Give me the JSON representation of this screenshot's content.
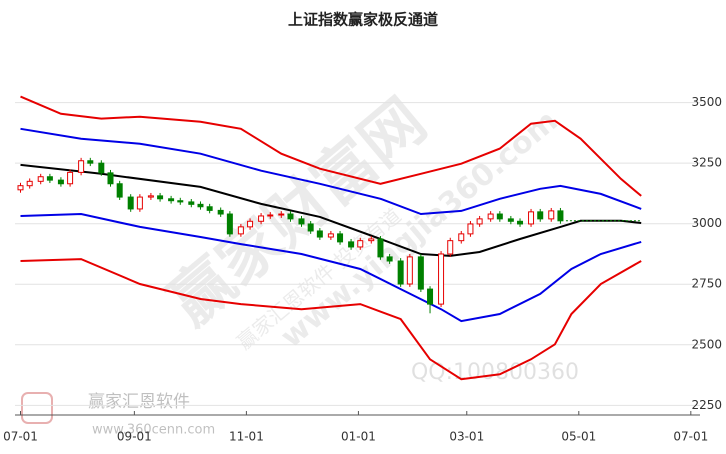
{
  "chart_data": {
    "type": "candlestick",
    "title": "上证指数赢家极反通道",
    "xlim": [
      -3,
      370
    ],
    "ylim": [
      2210,
      3800
    ],
    "xticks": [
      {
        "value": 0,
        "label": "07-01"
      },
      {
        "value": 62,
        "label": "09-01"
      },
      {
        "value": 123,
        "label": "11-01"
      },
      {
        "value": 184,
        "label": "01-01"
      },
      {
        "value": 243,
        "label": "03-01"
      },
      {
        "value": 304,
        "label": "05-01"
      },
      {
        "value": 365,
        "label": "07-01"
      }
    ],
    "yticks": [
      2250,
      2500,
      2750,
      3000,
      3250,
      3500
    ],
    "grid": true,
    "up_color": "#e60000",
    "down_color": "#008000",
    "candles": {
      "x": [
        0,
        5,
        11,
        16,
        22,
        27,
        33,
        38,
        44,
        49,
        54,
        60,
        65,
        71,
        76,
        82,
        87,
        93,
        98,
        103,
        109,
        114,
        120,
        125,
        131,
        136,
        142,
        147,
        153,
        158,
        163,
        169,
        174,
        180,
        185,
        191,
        196,
        201,
        207,
        212,
        218,
        223,
        229,
        234,
        240,
        245,
        250,
        256,
        261,
        267,
        272,
        278,
        283,
        289,
        294
      ],
      "open": [
        3140,
        3157,
        3175,
        3194,
        3180,
        3165,
        3212,
        3260,
        3250,
        3210,
        3165,
        3110,
        3061,
        3110,
        3115,
        3103,
        3095,
        3090,
        3080,
        3070,
        3055,
        3040,
        2958,
        2987,
        3010,
        3032,
        3036,
        3040,
        3020,
        2999,
        2970,
        2945,
        2958,
        2925,
        2904,
        2930,
        2937,
        2863,
        2846,
        2751,
        2863,
        2730,
        2668,
        2875,
        2930,
        2958,
        2999,
        3020,
        3040,
        3020,
        3010,
        2999,
        3049,
        3020,
        3053
      ],
      "close": [
        3157,
        3175,
        3194,
        3180,
        3165,
        3212,
        3260,
        3250,
        3210,
        3165,
        3110,
        3061,
        3110,
        3115,
        3103,
        3095,
        3090,
        3080,
        3070,
        3055,
        3040,
        2958,
        2987,
        3010,
        3032,
        3036,
        3040,
        3020,
        2999,
        2970,
        2945,
        2958,
        2925,
        2904,
        2930,
        2937,
        2863,
        2846,
        2751,
        2863,
        2730,
        2668,
        2875,
        2930,
        2958,
        2999,
        3020,
        3040,
        3020,
        3010,
        2999,
        3049,
        3020,
        3053,
        3012
      ],
      "high": [
        3169,
        3187,
        3206,
        3206,
        3192,
        3224,
        3272,
        3272,
        3262,
        3222,
        3177,
        3122,
        3122,
        3127,
        3127,
        3115,
        3107,
        3102,
        3092,
        3082,
        3067,
        3052,
        2999,
        3022,
        3044,
        3048,
        3052,
        3052,
        3032,
        3011,
        2982,
        2970,
        2970,
        2937,
        2942,
        2949,
        2949,
        2875,
        2858,
        2875,
        2875,
        2742,
        2887,
        2942,
        2970,
        3011,
        3032,
        3052,
        3052,
        3032,
        3022,
        3061,
        3061,
        3065,
        3065
      ],
      "low": [
        3128,
        3145,
        3163,
        3168,
        3153,
        3153,
        3200,
        3238,
        3198,
        3153,
        3098,
        3049,
        3049,
        3098,
        3091,
        3083,
        3078,
        3068,
        3058,
        3043,
        3028,
        2946,
        2946,
        2975,
        2998,
        3020,
        3024,
        3008,
        2987,
        2958,
        2933,
        2933,
        2913,
        2892,
        2892,
        2918,
        2851,
        2834,
        2739,
        2739,
        2718,
        2630,
        2656,
        2863,
        2918,
        2946,
        2987,
        3008,
        3008,
        2998,
        2987,
        2987,
        3008,
        3008,
        3000
      ]
    },
    "lines": [
      {
        "color": "#e60000",
        "x": [
          0,
          22,
          44,
          65,
          98,
          120,
          142,
          163,
          196,
          218,
          240,
          261,
          278,
          291,
          305,
          327,
          338
        ],
        "values": [
          3525,
          3454,
          3434,
          3442,
          3421,
          3392,
          3289,
          3227,
          3165,
          3206,
          3248,
          3310,
          3413,
          3425,
          3351,
          3185,
          3115
        ]
      },
      {
        "color": "#0000e6",
        "x": [
          0,
          33,
          65,
          98,
          131,
          163,
          196,
          218,
          240,
          261,
          283,
          294,
          316,
          338
        ],
        "values": [
          3392,
          3351,
          3330,
          3289,
          3219,
          3165,
          3103,
          3040,
          3053,
          3103,
          3144,
          3156,
          3123,
          3061
        ]
      },
      {
        "color": "#000000",
        "x": [
          0,
          44,
          98,
          131,
          163,
          196,
          218,
          234,
          250,
          272,
          294,
          305,
          327,
          338
        ],
        "values": [
          3243,
          3206,
          3152,
          3082,
          3028,
          2937,
          2875,
          2867,
          2883,
          2937,
          2987,
          3012,
          3012,
          3003
        ]
      },
      {
        "color": "#0000e6",
        "x": [
          0,
          33,
          65,
          98,
          120,
          153,
          185,
          207,
          229,
          240,
          261,
          283,
          300,
          316,
          338
        ],
        "values": [
          3032,
          3040,
          2987,
          2945,
          2916,
          2875,
          2813,
          2730,
          2647,
          2598,
          2627,
          2710,
          2813,
          2875,
          2925
        ]
      },
      {
        "color": "#e60000",
        "x": [
          0,
          33,
          65,
          98,
          120,
          153,
          185,
          207,
          223,
          240,
          261,
          278,
          291,
          300,
          316,
          338
        ],
        "values": [
          2846,
          2854,
          2751,
          2689,
          2668,
          2647,
          2668,
          2606,
          2440,
          2358,
          2378,
          2440,
          2502,
          2627,
          2751,
          2846
        ]
      }
    ],
    "last_price": {
      "value": 3012,
      "x": [
        297,
        338
      ],
      "color": "#008000"
    },
    "watermarks": [
      "赢家财富网",
      "赢家汇恩软件 投资有道",
      "www.yingjia360.com",
      "QQ:100800360",
      "赢家汇恩软件",
      "www.360cenn.com"
    ]
  }
}
